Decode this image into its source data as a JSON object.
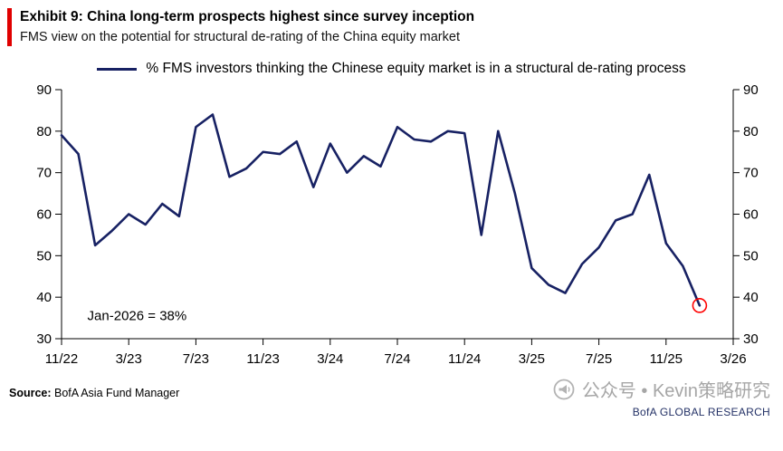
{
  "header": {
    "exhibit_title": "Exhibit 9: China long-term prospects highest since survey inception",
    "subtitle": "FMS view on the potential for structural de-rating of the China equity market",
    "accent_color": "#e00000"
  },
  "legend": {
    "label": "% FMS investors thinking the Chinese equity market is in a structural de-rating process",
    "line_color": "#172163"
  },
  "chart_data": {
    "type": "line",
    "title": "Exhibit 9: China long-term prospects highest since survey inception",
    "ylabel": "",
    "xlabel": "",
    "ylim": [
      30,
      90
    ],
    "yticks": [
      30,
      40,
      50,
      60,
      70,
      80,
      90
    ],
    "y_axis_sides": "both",
    "grid": false,
    "legend_position": "top-center",
    "x_tick_labels": [
      "11/22",
      "3/23",
      "7/23",
      "11/23",
      "3/24",
      "7/24",
      "11/24",
      "3/25",
      "7/25",
      "11/25",
      "3/26"
    ],
    "x_axis_span_months": 40,
    "series": [
      {
        "name": "% FMS investors thinking the Chinese equity market is in a structural de-rating process",
        "color": "#172163",
        "x_labels": [
          "11/22",
          "12/22",
          "1/23",
          "2/23",
          "3/23",
          "4/23",
          "5/23",
          "6/23",
          "7/23",
          "8/23",
          "9/23",
          "10/23",
          "11/23",
          "12/23",
          "1/24",
          "2/24",
          "3/24",
          "4/24",
          "5/24",
          "6/24",
          "7/24",
          "8/24",
          "9/24",
          "10/24",
          "11/24",
          "12/24",
          "1/25",
          "2/25",
          "3/25",
          "4/25",
          "5/25",
          "6/25",
          "7/25",
          "8/25",
          "9/25",
          "10/25",
          "11/25",
          "12/25",
          "1/26"
        ],
        "values": [
          79,
          74.5,
          52.5,
          56,
          60,
          57.5,
          62.5,
          59.5,
          81,
          84,
          69,
          71,
          75,
          74.5,
          77.5,
          66.5,
          77,
          70,
          74,
          71.5,
          81,
          78,
          77.5,
          80,
          79.5,
          55,
          80,
          65,
          47,
          43,
          41,
          48,
          52,
          58.5,
          60,
          69.5,
          53,
          47.5,
          38
        ]
      }
    ],
    "annotation": {
      "text": "Jan-2026 = 38%",
      "color": "#ff0000"
    },
    "highlight_last_point": {
      "value": 38,
      "label": "1/26",
      "color": "#ff0000"
    }
  },
  "footer": {
    "source_label": "Source:",
    "source_text": " BofA Asia Fund Manager",
    "watermark": "公众号 • Kevin策略研究",
    "brand": "BofA GLOBAL RESEARCH"
  }
}
